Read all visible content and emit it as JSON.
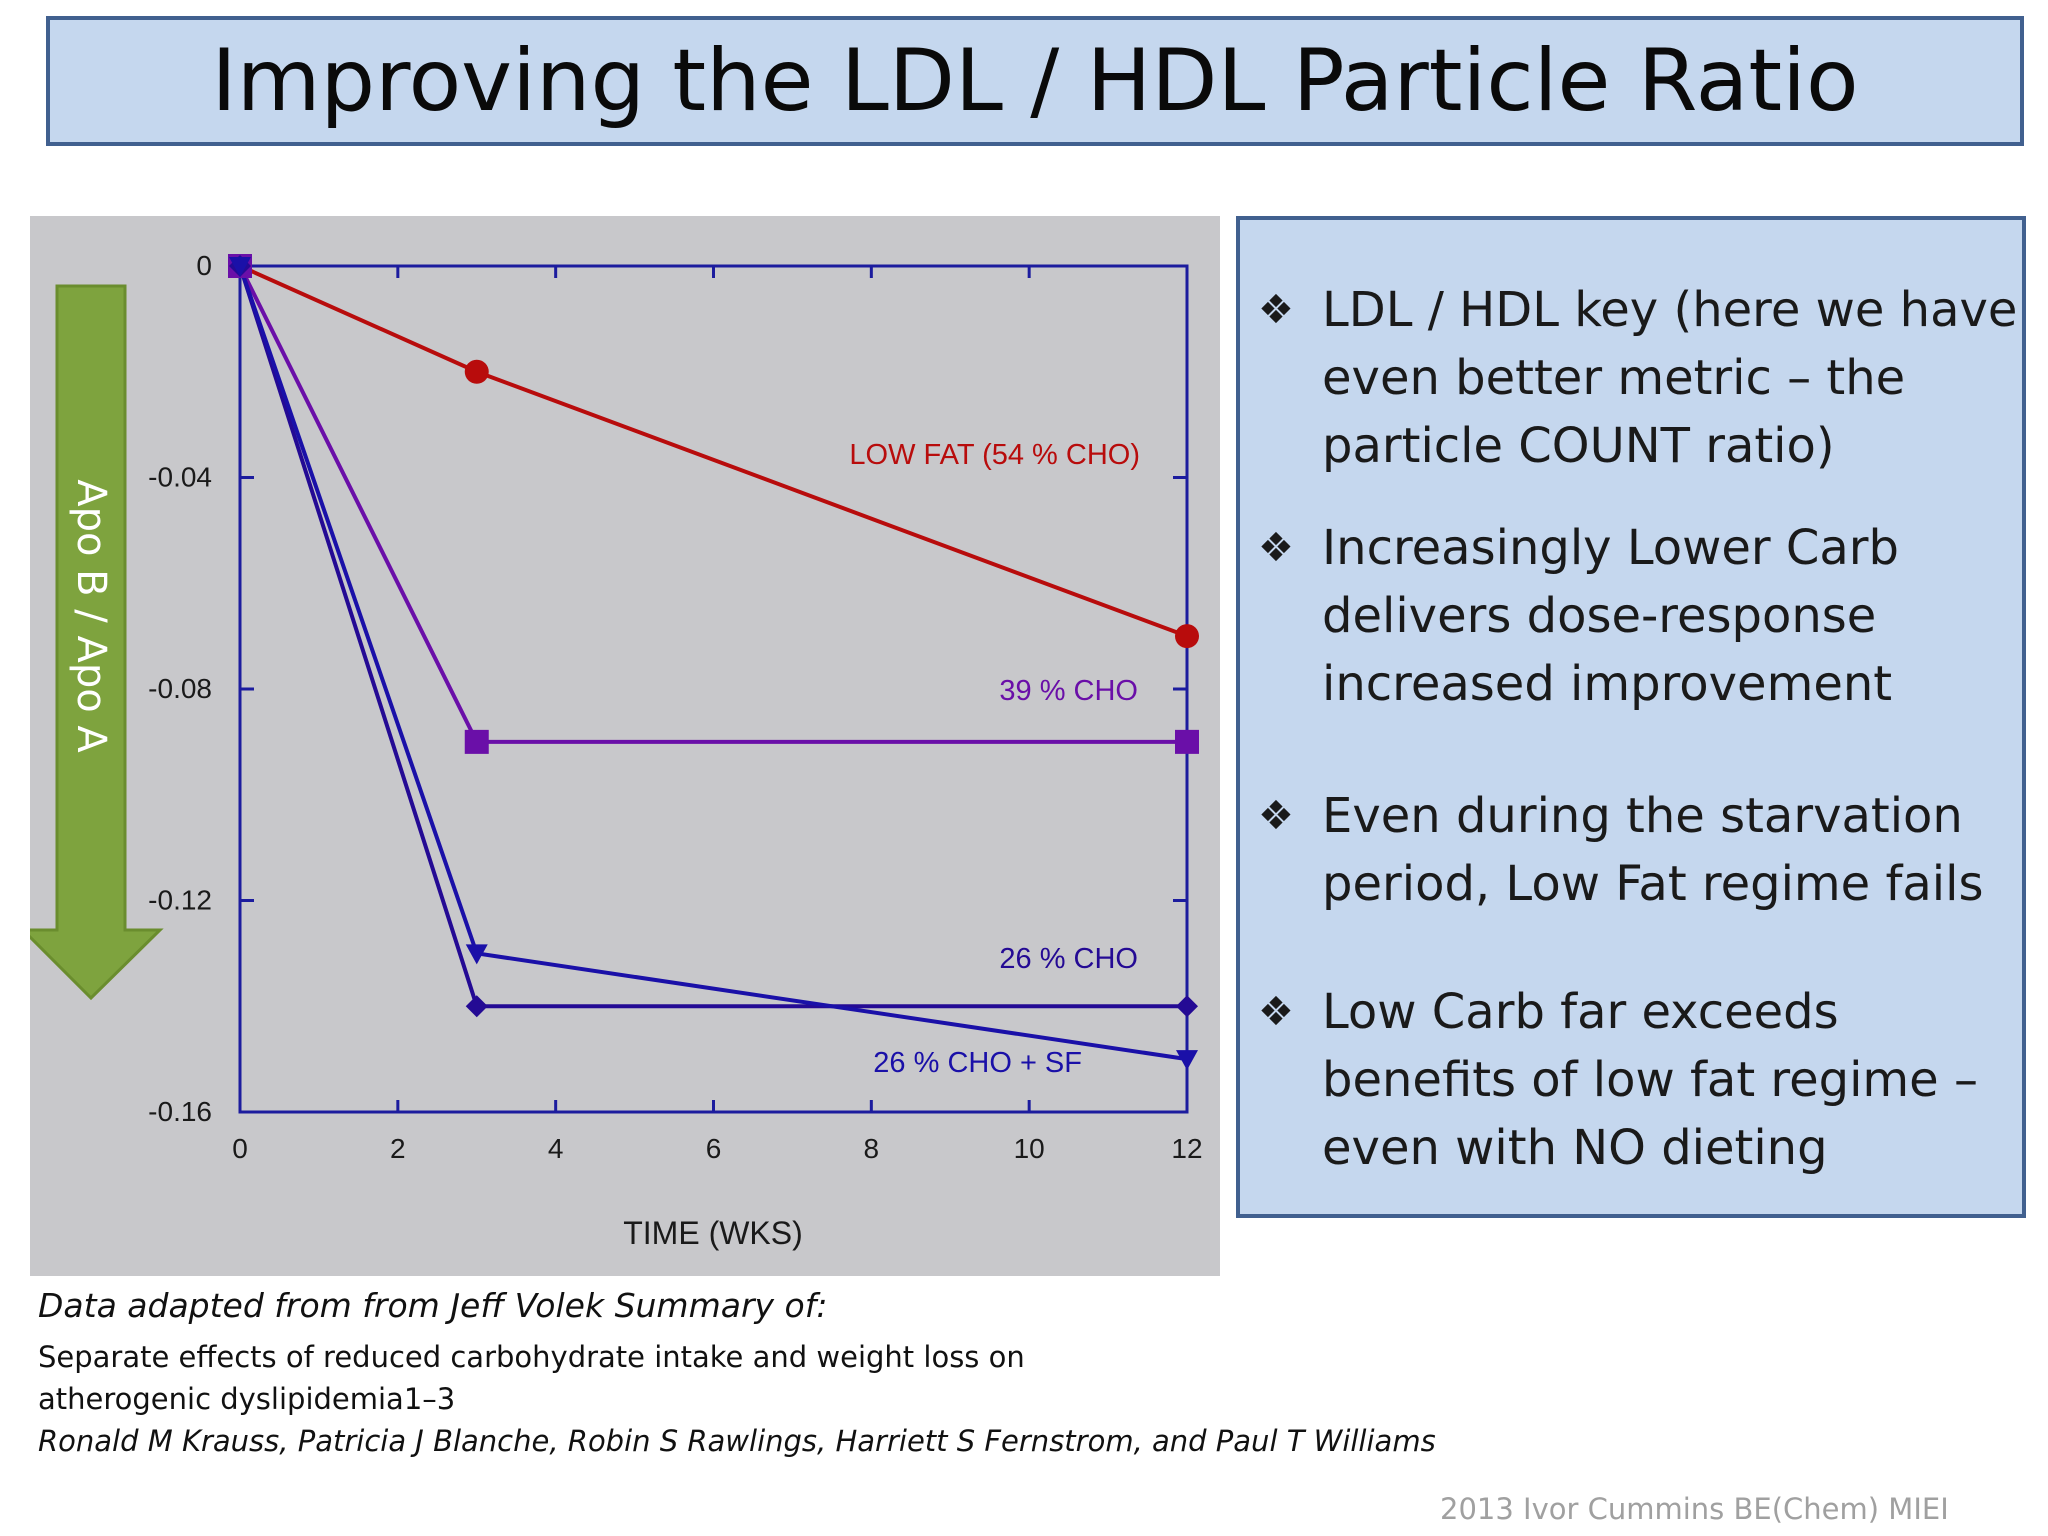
{
  "slide": {
    "title": "Improving the LDL / HDL Particle Ratio"
  },
  "bullets": [
    {
      "marker": "❖",
      "text": "LDL / HDL key (here we have even better metric – the particle COUNT ratio)"
    },
    {
      "marker": "❖",
      "text": "Increasingly Lower Carb delivers dose-response increased improvement"
    },
    {
      "marker": "❖",
      "text": "Even during the starvation period, Low Fat regime fails"
    },
    {
      "marker": "❖",
      "text": "Low Carb far exceeds benefits of low fat regime – even with NO dieting"
    }
  ],
  "source": {
    "heading": "Data adapted from from Jeff Volek Summary of:",
    "paper_title_line1": "Separate effects of reduced carbohydrate intake and weight loss on",
    "paper_title_line2": "atherogenic dyslipidemia1–3",
    "authors": "Ronald M Krauss, Patricia J Blanche, Robin S Rawlings, Harriett S Fernstrom, and Paul T Williams"
  },
  "credit": "2013 Ivor Cummins BE(Chem) MIEI",
  "colors": {
    "title_bg": "#c5d7ee",
    "border": "#41608f",
    "chart_bg": "#c8c8cb",
    "arrow_fill": "#7ea33e",
    "arrow_text": "#ffffff"
  },
  "chart_data": {
    "type": "line",
    "title": "",
    "xlabel": "TIME (WKS)",
    "ylabel": "Apo B / Apo A",
    "xlim": [
      0,
      12
    ],
    "ylim": [
      -0.16,
      0
    ],
    "x_ticks": [
      0,
      2,
      4,
      6,
      8,
      10,
      12
    ],
    "y_ticks": [
      0,
      -0.04,
      -0.08,
      -0.12,
      -0.16
    ],
    "x_tick_labels": [
      "0",
      "2",
      "4",
      "6",
      "8",
      "10",
      "12"
    ],
    "y_tick_labels": [
      "0",
      "-0.04",
      "-0.08",
      "-0.12",
      "-0.16"
    ],
    "grid": false,
    "series": [
      {
        "name": "LOW FAT (54 % CHO)",
        "x": [
          0,
          3,
          12
        ],
        "y": [
          0,
          -0.02,
          -0.07
        ],
        "color": "#b80c0c",
        "marker": "circle"
      },
      {
        "name": "39 % CHO",
        "x": [
          0,
          3,
          12
        ],
        "y": [
          0,
          -0.09,
          -0.09
        ],
        "color": "#6a0fa8",
        "marker": "square"
      },
      {
        "name": "26 % CHO",
        "x": [
          0,
          3,
          12
        ],
        "y": [
          0,
          -0.14,
          -0.14
        ],
        "color": "#240a94",
        "marker": "diamond"
      },
      {
        "name": "26 % CHO + SF",
        "x": [
          0,
          3,
          12
        ],
        "y": [
          0,
          -0.13,
          -0.15
        ],
        "color": "#1a10a8",
        "marker": "triangle-down"
      }
    ]
  }
}
